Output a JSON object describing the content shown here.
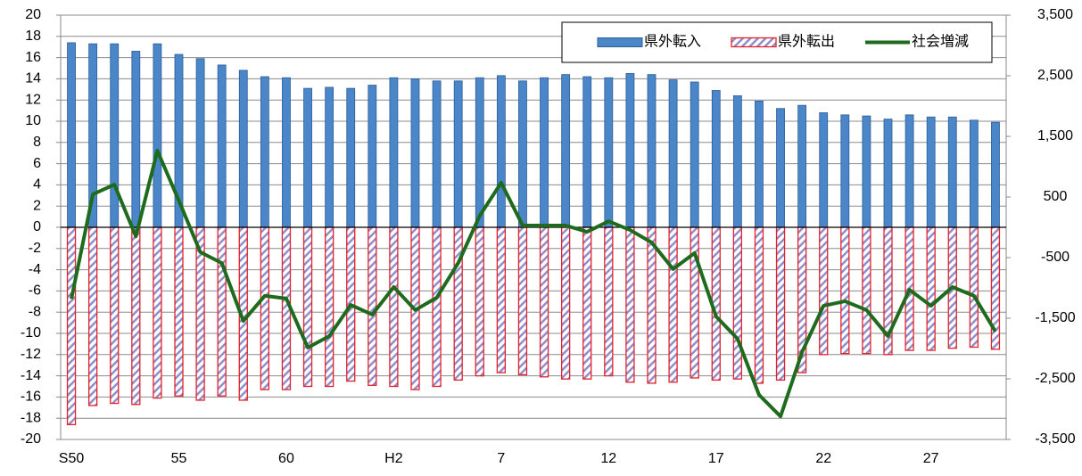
{
  "chart_data": {
    "type": "bar",
    "categories": [
      "S50",
      null,
      null,
      null,
      null,
      "55",
      null,
      null,
      null,
      null,
      "60",
      null,
      null,
      null,
      null,
      "H2",
      null,
      null,
      null,
      null,
      "7",
      null,
      null,
      null,
      null,
      "12",
      null,
      null,
      null,
      null,
      "17",
      null,
      null,
      null,
      null,
      "22",
      null,
      null,
      null,
      null,
      "27",
      null,
      null,
      null
    ],
    "series": [
      {
        "name": "県外転入",
        "color": "#4a86c8",
        "values": [
          17.4,
          17.3,
          17.3,
          16.6,
          17.3,
          16.3,
          15.9,
          15.3,
          14.8,
          14.2,
          14.1,
          13.1,
          13.2,
          13.1,
          13.4,
          14.1,
          14.0,
          13.8,
          13.8,
          14.1,
          14.3,
          13.8,
          14.1,
          14.4,
          14.2,
          14.1,
          14.5,
          14.4,
          13.9,
          13.7,
          12.9,
          12.4,
          11.9,
          11.2,
          11.5,
          10.8,
          10.6,
          10.5,
          10.2,
          10.6,
          10.4,
          10.4,
          10.1,
          9.9
        ]
      },
      {
        "name": "県外転出",
        "color": "#e8202a",
        "values": [
          -18.6,
          -16.8,
          -16.6,
          -16.7,
          -16.1,
          -15.9,
          -16.3,
          -15.9,
          -16.3,
          -15.3,
          -15.3,
          -15.0,
          -15.0,
          -14.5,
          -14.9,
          -15.0,
          -15.3,
          -15.0,
          -14.4,
          -14.0,
          -13.7,
          -13.9,
          -14.1,
          -14.3,
          -14.3,
          -14.0,
          -14.6,
          -14.7,
          -14.6,
          -14.2,
          -14.4,
          -14.3,
          -14.7,
          -14.4,
          -13.7,
          -12.0,
          -11.9,
          -11.9,
          -12.0,
          -11.6,
          -11.6,
          -11.4,
          -11.3,
          -11.5
        ]
      },
      {
        "name": "社会増減",
        "type": "line",
        "axis": "y2",
        "color": "#1e6b1e",
        "values": [
          -1180,
          545,
          705,
          -150,
          1265,
          440,
          -410,
          -590,
          -1545,
          -1130,
          -1175,
          -1985,
          -1795,
          -1280,
          -1440,
          -985,
          -1365,
          -1160,
          -590,
          190,
          735,
          30,
          30,
          30,
          -75,
          100,
          -45,
          -250,
          -690,
          -425,
          -1470,
          -1840,
          -2765,
          -3120,
          -2060,
          -1295,
          -1220,
          -1365,
          -1795,
          -1030,
          -1295,
          -985,
          -1130,
          -1720
        ]
      }
    ],
    "ylim": [
      -20,
      20
    ],
    "yticks": [
      20,
      18,
      16,
      14,
      12,
      10,
      8,
      6,
      4,
      2,
      0,
      -2,
      -4,
      -6,
      -8,
      -10,
      -12,
      -14,
      -16,
      -18,
      -20
    ],
    "y2lim": [
      -3500,
      3500
    ],
    "y2ticks": [
      {
        "value": 3500,
        "label": "3,500"
      },
      {
        "value": 2500,
        "label": "2,500"
      },
      {
        "value": 1500,
        "label": "1,500"
      },
      500,
      -500,
      {
        "value": -1500,
        "label": "-1,500"
      },
      {
        "value": -2500,
        "label": "-2,500"
      },
      {
        "value": -3500,
        "label": "-3,500"
      }
    ],
    "grid": true,
    "legend": "upper right"
  }
}
